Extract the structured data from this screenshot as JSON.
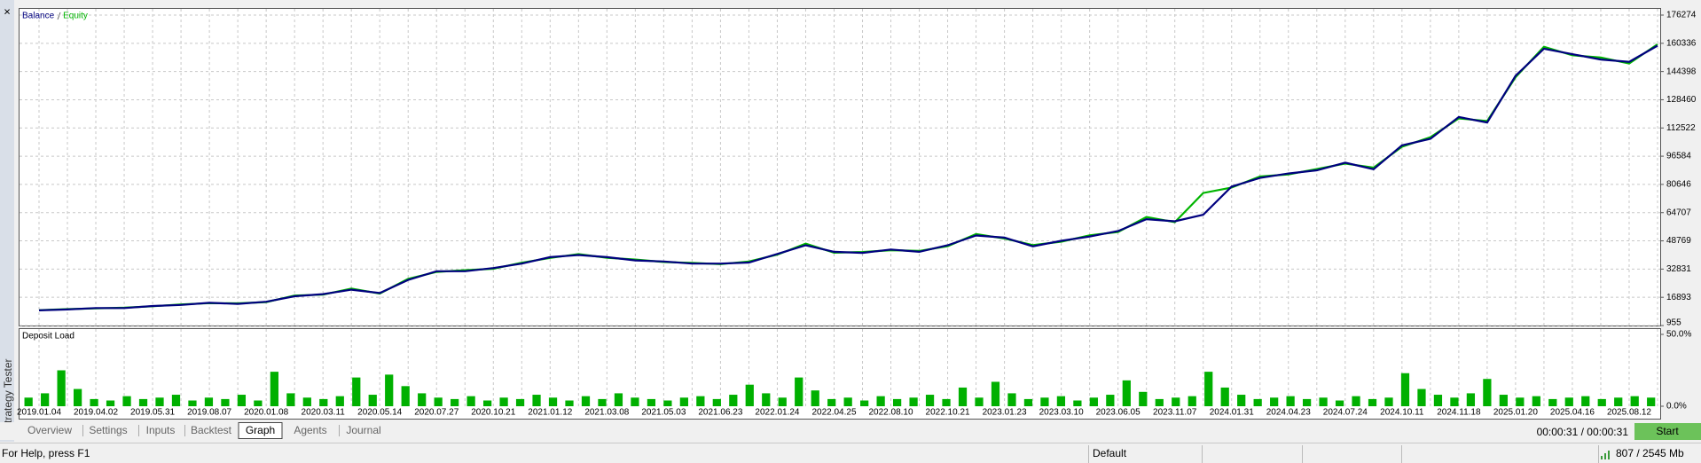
{
  "ui": {
    "close": "×",
    "panel_title": "Strategy Tester",
    "tabs": [
      "Overview",
      "Settings",
      "Inputs",
      "Backtest",
      "Graph",
      "Agents",
      "Journal"
    ],
    "active_tab": 4,
    "timer": "00:00:31 / 00:00:31",
    "start_button": "Start",
    "status_help": "For Help, press F1",
    "status_profile": "Default",
    "status_memory": "807 / 2545 Mb"
  },
  "chart_data": [
    {
      "type": "line",
      "categories": [
        "2019.01.04",
        null,
        "2019.04.02",
        null,
        "2019.05.31",
        null,
        "2019.08.07",
        null,
        "2020.01.08",
        null,
        "2020.03.11",
        null,
        "2020.05.14",
        null,
        "2020.07.27",
        null,
        "2020.10.21",
        null,
        "2021.01.12",
        null,
        "2021.03.08",
        null,
        "2021.05.03",
        null,
        "2021.06.23",
        null,
        "2022.01.24",
        null,
        "2022.04.25",
        null,
        "2022.08.10",
        null,
        "2022.10.21",
        null,
        "2023.01.23",
        null,
        "2023.03.10",
        null,
        "2023.06.05",
        null,
        "2023.11.07",
        null,
        "2024.01.31",
        null,
        "2024.04.23",
        null,
        "2024.07.24",
        null,
        "2024.10.11",
        null,
        "2024.11.18",
        null,
        "2025.01.20",
        null,
        "2025.04.16",
        null,
        "2025.08.12",
        null
      ],
      "series": [
        {
          "name": "Balance",
          "color": "#00007f",
          "values": [
            9500,
            10000,
            10800,
            10800,
            12000,
            12600,
            13800,
            13200,
            14400,
            17500,
            18700,
            21200,
            19300,
            26700,
            31600,
            31600,
            33400,
            35900,
            39600,
            40800,
            39600,
            37700,
            37100,
            35900,
            35900,
            36500,
            41400,
            46300,
            42600,
            42000,
            43900,
            42600,
            46300,
            51800,
            50600,
            45700,
            48800,
            51200,
            54300,
            61000,
            59800,
            63500,
            79400,
            84300,
            86800,
            88600,
            92900,
            89200,
            102700,
            106400,
            118700,
            115600,
            142000,
            157300,
            154200,
            151200,
            149900,
            159000
          ]
        },
        {
          "name": "Equity",
          "color": "#00b400",
          "values": [
            9600,
            10200,
            10600,
            11000,
            11800,
            12900,
            13600,
            13500,
            14200,
            17900,
            18400,
            21800,
            19000,
            27300,
            31200,
            32200,
            33000,
            36400,
            39100,
            41300,
            39200,
            38200,
            36800,
            36300,
            35600,
            37100,
            41000,
            47200,
            42100,
            42500,
            43500,
            43100,
            45800,
            52600,
            50100,
            46400,
            48300,
            51900,
            53800,
            62200,
            59300,
            75800,
            78900,
            85100,
            86300,
            89300,
            92400,
            90100,
            101900,
            107300,
            117900,
            116400,
            141200,
            158400,
            153600,
            152300,
            148900,
            159800
          ]
        }
      ],
      "ylim": [
        955,
        176274
      ],
      "yticks": [
        955,
        16893,
        32831,
        48769,
        64707,
        80646,
        96584,
        112522,
        128460,
        144398,
        160336,
        176274
      ],
      "grid": true
    },
    {
      "type": "bar",
      "title": "Deposit Load",
      "color": "#00b000",
      "values": [
        6,
        9,
        25,
        12,
        5,
        4,
        7,
        5,
        6,
        8,
        4,
        6,
        5,
        8,
        4,
        24,
        9,
        6,
        5,
        7,
        20,
        8,
        22,
        14,
        9,
        6,
        5,
        7,
        4,
        6,
        5,
        8,
        6,
        4,
        7,
        5,
        9,
        6,
        5,
        4,
        6,
        7,
        5,
        8,
        15,
        9,
        6,
        20,
        11,
        5,
        6,
        4,
        7,
        5,
        6,
        8,
        5,
        13,
        6,
        17,
        9,
        5,
        6,
        7,
        4,
        6,
        8,
        18,
        10,
        5,
        6,
        7,
        24,
        13,
        8,
        5,
        6,
        7,
        5,
        6,
        4,
        7,
        5,
        6,
        23,
        12,
        8,
        6,
        9,
        19,
        8,
        6,
        7,
        5,
        6,
        7,
        5,
        6,
        7,
        6
      ],
      "ylim": [
        0,
        50
      ],
      "yticks": [
        {
          "value": 0,
          "label": "0.0%"
        },
        {
          "value": 50,
          "label": "50.0%"
        }
      ],
      "grid": true
    }
  ]
}
